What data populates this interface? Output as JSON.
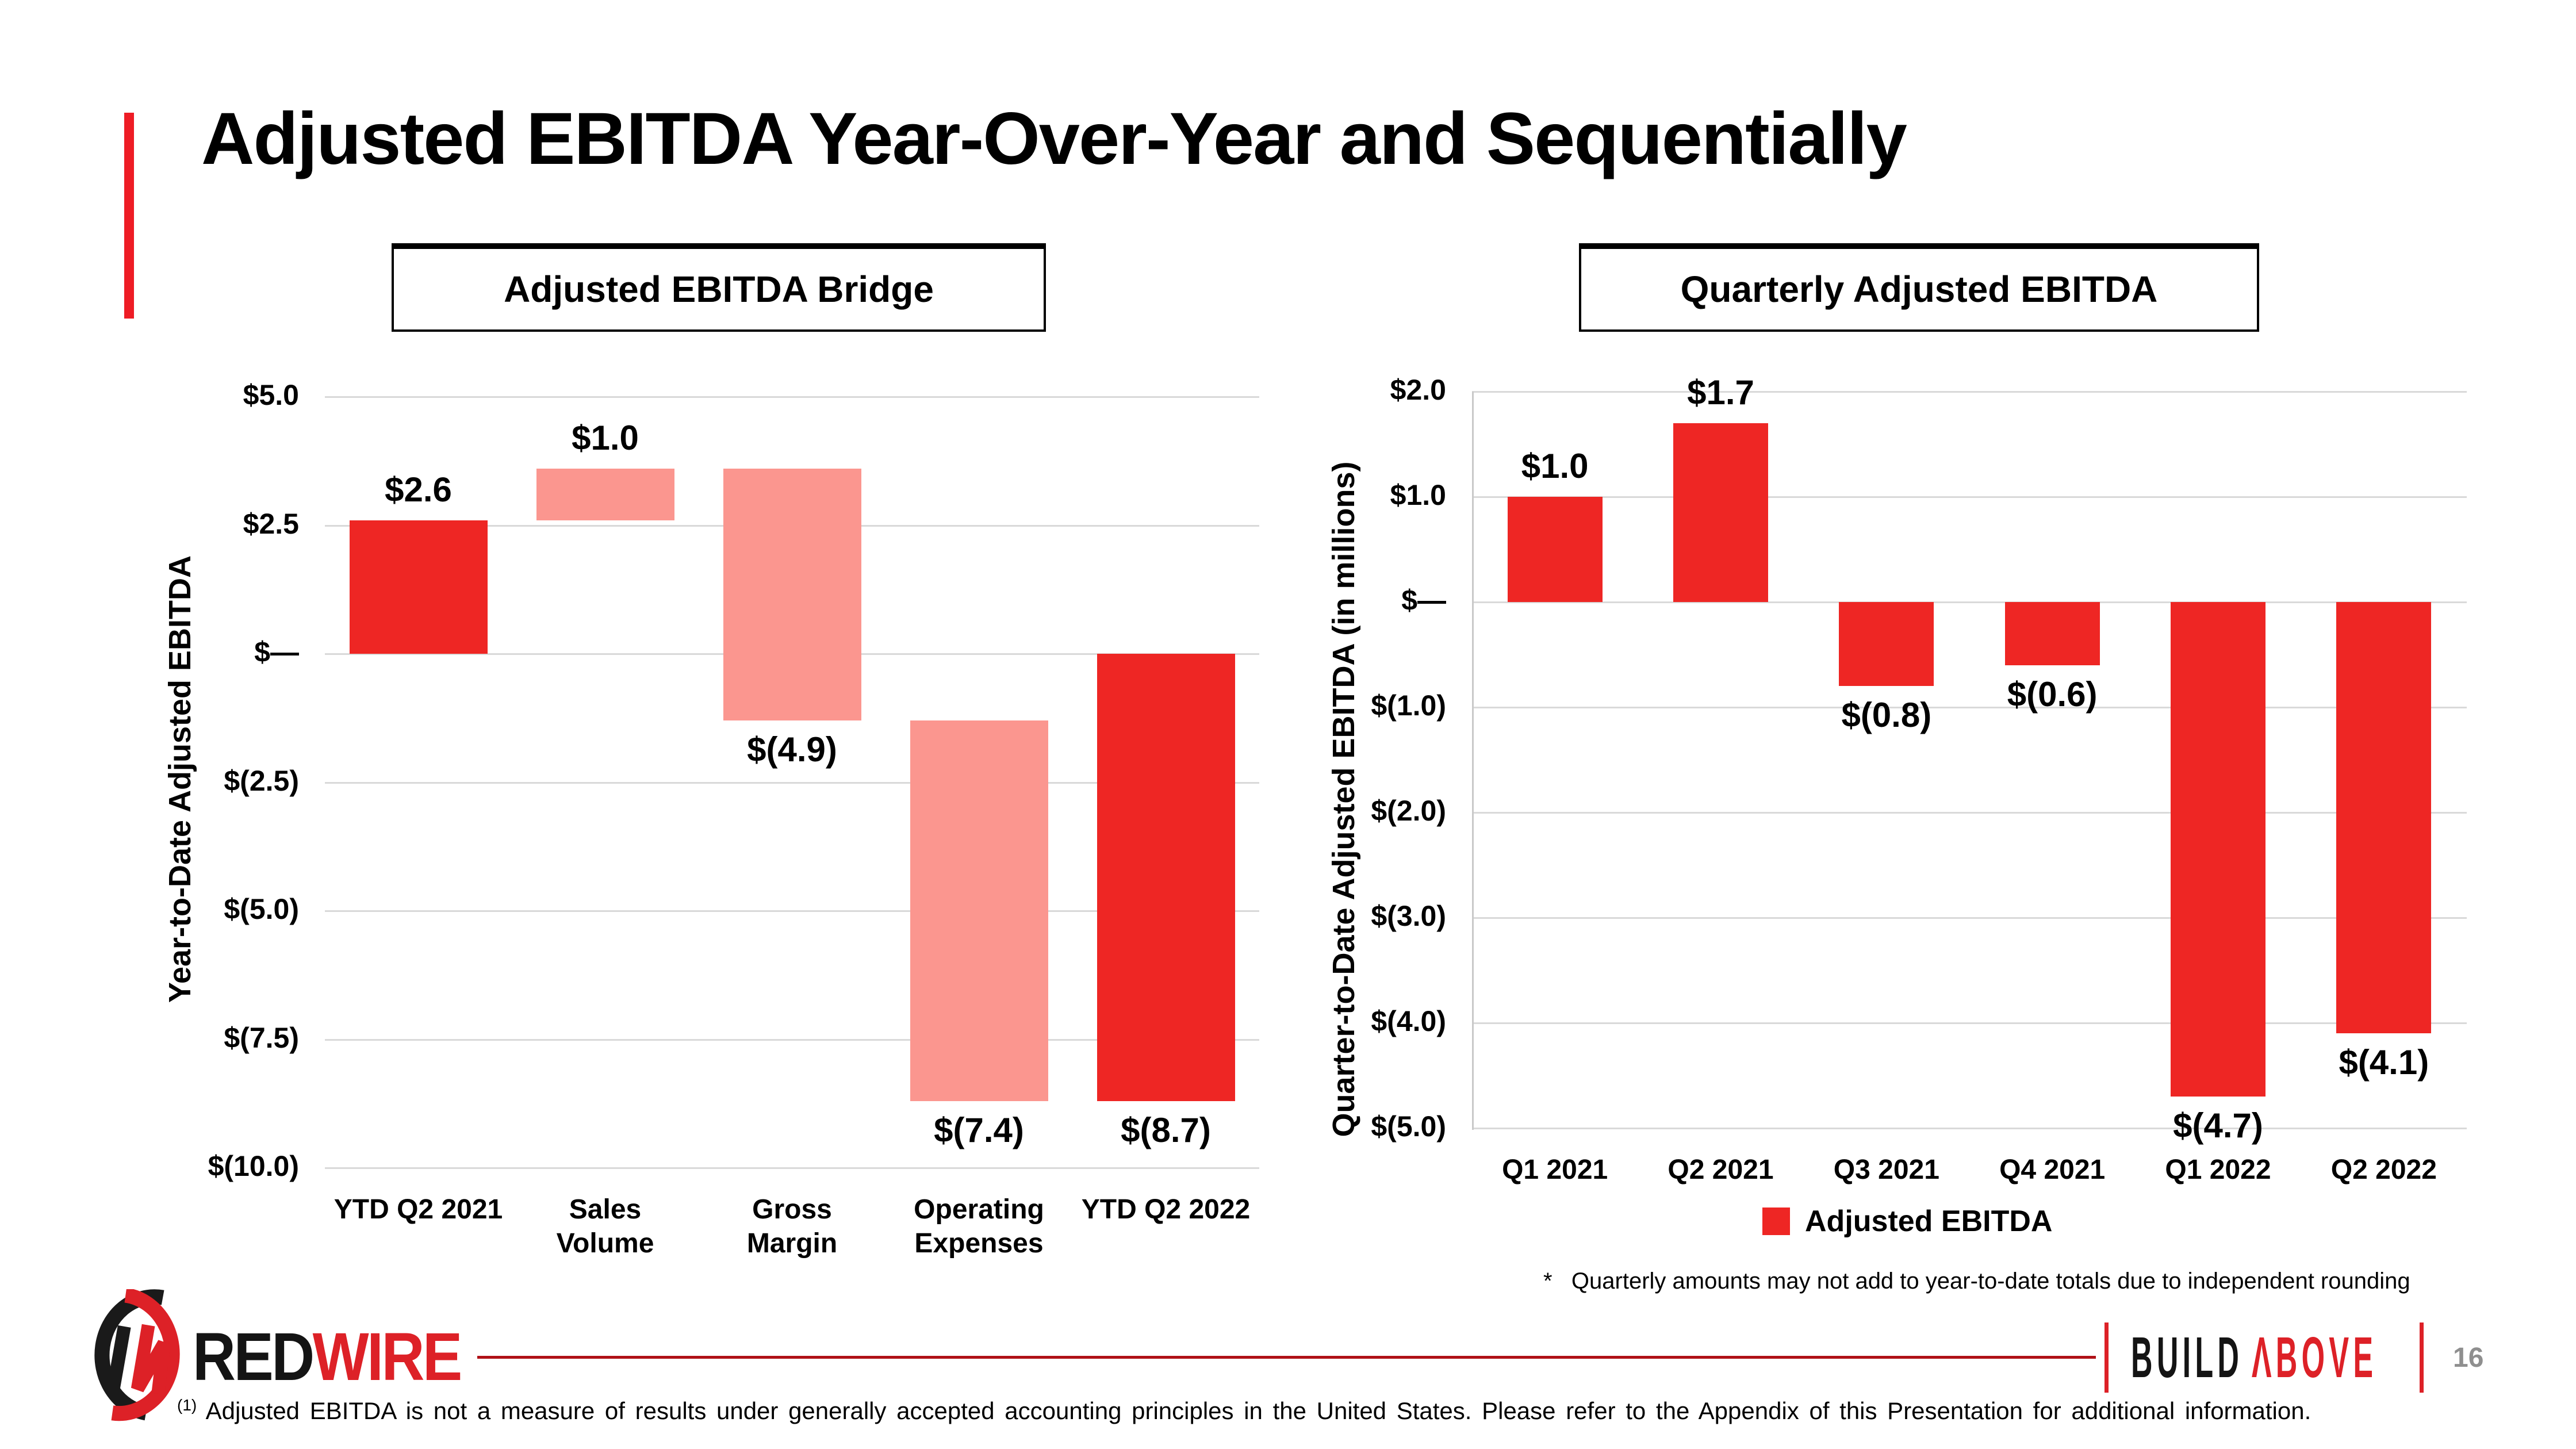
{
  "slide": {
    "title": "Adjusted EBITDA Year-Over-Year and Sequentially",
    "page_number": "16",
    "bottom_footnote_marker": "(1)",
    "bottom_footnote": "Adjusted EBITDA is not a measure of results under generally accepted accounting principles in the United States. Please refer to the Appendix of this Presentation for additional information."
  },
  "footer": {
    "brand_red": "RED",
    "brand_wire": "WIRE",
    "build": "BUILD",
    "above": "ΛBOVE"
  },
  "colors": {
    "bar_red": "#EE2624",
    "bar_pink": "#FB968F",
    "accent_red": "#EE1C25",
    "gridline": "#D9D9D9"
  },
  "chart_data": [
    {
      "id": "bridge",
      "type": "bar",
      "subtype": "waterfall",
      "title": "Adjusted EBITDA Bridge",
      "ylabel": "Year-to-Date Adjusted EBITDA",
      "ylim": [
        -10,
        5
      ],
      "grid": true,
      "legend_position": "none",
      "categories": [
        "YTD Q2 2021",
        "Sales\nVolume",
        "Gross\nMargin",
        "Operating\nExpenses",
        "YTD Q2 2022"
      ],
      "values": [
        2.6,
        1.0,
        -4.9,
        -7.4,
        -8.7
      ],
      "segments": [
        [
          0,
          2.6
        ],
        [
          2.6,
          3.6
        ],
        [
          3.6,
          -1.3
        ],
        [
          -1.3,
          -8.7
        ],
        [
          0,
          -8.7
        ]
      ],
      "bar_labels": [
        "$2.6",
        "$1.0",
        "$(4.9)",
        "$(7.4)",
        "$(8.7)"
      ],
      "label_position": [
        "above",
        "above",
        "below",
        "below",
        "below"
      ],
      "bar_colors": [
        "#EE2624",
        "#FB968F",
        "#FB968F",
        "#FB968F",
        "#EE2624"
      ],
      "yticks": [
        {
          "value": 5.0,
          "label": "$5.0"
        },
        {
          "value": 2.5,
          "label": "$2.5"
        },
        {
          "value": 0,
          "label": "$—"
        },
        {
          "value": -2.5,
          "label": "$(2.5)"
        },
        {
          "value": -5.0,
          "label": "$(5.0)"
        },
        {
          "value": -7.5,
          "label": "$(7.5)"
        },
        {
          "value": -10.0,
          "label": "$(10.0)"
        }
      ]
    },
    {
      "id": "quarterly",
      "type": "bar",
      "title": "Quarterly Adjusted EBITDA",
      "ylabel": "Quarter-to-Date Adjusted EBITDA (in millions)",
      "ylim": [
        -5,
        2
      ],
      "grid": true,
      "legend_position": "bottom",
      "categories": [
        "Q1 2021",
        "Q2 2021",
        "Q3 2021",
        "Q4 2021",
        "Q1 2022",
        "Q2 2022"
      ],
      "values": [
        1.0,
        1.7,
        -0.8,
        -0.6,
        -4.7,
        -4.1
      ],
      "bar_labels": [
        "$1.0",
        "$1.7",
        "$(0.8)",
        "$(0.6)",
        "$(4.7)",
        "$(4.1)"
      ],
      "label_position": [
        "above",
        "above",
        "below",
        "below",
        "below",
        "below"
      ],
      "bar_color": "#EE2624",
      "legend": {
        "label": "Adjusted EBITDA",
        "color": "#EE2624"
      },
      "footnote": "*   Quarterly amounts may not add to year-to-date totals due to independent rounding",
      "yticks": [
        {
          "value": 2.0,
          "label": "$2.0"
        },
        {
          "value": 1.0,
          "label": "$1.0"
        },
        {
          "value": 0,
          "label": "$—"
        },
        {
          "value": -1.0,
          "label": "$(1.0)"
        },
        {
          "value": -2.0,
          "label": "$(2.0)"
        },
        {
          "value": -3.0,
          "label": "$(3.0)"
        },
        {
          "value": -4.0,
          "label": "$(4.0)"
        },
        {
          "value": -5.0,
          "label": "$(5.0)"
        }
      ]
    }
  ]
}
